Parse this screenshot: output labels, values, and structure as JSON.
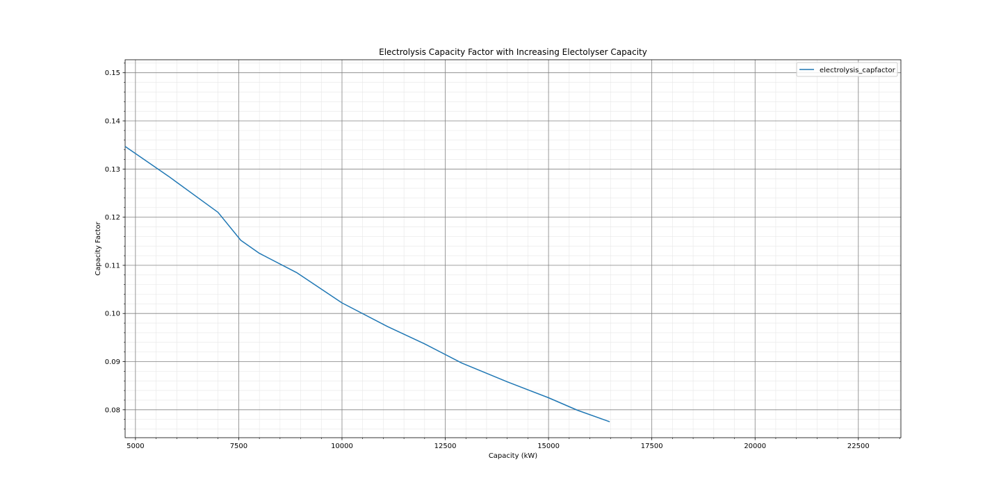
{
  "chart_data": {
    "type": "line",
    "title": "Electrolysis Capacity Factor with Increasing Electolyser Capacity",
    "xlabel": "Capacity (kW)",
    "ylabel": "Capacity Factor",
    "xlim": [
      4750,
      23530
    ],
    "ylim": [
      0.0742,
      0.1527
    ],
    "xticks": [
      5000,
      7500,
      10000,
      12500,
      15000,
      17500,
      20000,
      22500
    ],
    "yticks": [
      0.08,
      0.09,
      0.1,
      0.11,
      0.12,
      0.13,
      0.14,
      0.15
    ],
    "xtick_labels": [
      "5000",
      "7500",
      "10000",
      "12500",
      "15000",
      "17500",
      "20000",
      "22500"
    ],
    "ytick_labels": [
      "0.08",
      "0.09",
      "0.10",
      "0.11",
      "0.12",
      "0.13",
      "0.14",
      "0.15"
    ],
    "grid": true,
    "minor_grid": true,
    "legend_position": "top-right",
    "series": [
      {
        "name": "electrolysis_capfactor",
        "color": "#1f77b4",
        "x": [
          4750,
          5800,
          7000,
          7550,
          8000,
          8900,
          10000,
          11100,
          12000,
          12900,
          14000,
          15000,
          15700,
          16480
        ],
        "y": [
          0.1347,
          0.1285,
          0.121,
          0.1152,
          0.1125,
          0.1085,
          0.1022,
          0.0973,
          0.0937,
          0.0897,
          0.0858,
          0.0825,
          0.0799,
          0.0775
        ]
      }
    ]
  }
}
